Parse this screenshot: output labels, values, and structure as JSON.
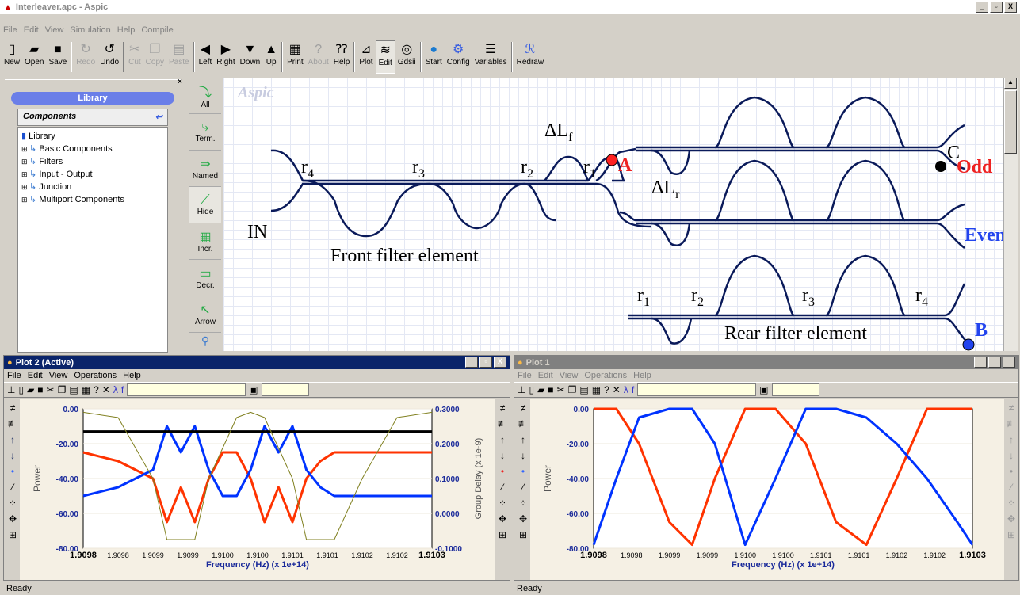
{
  "window": {
    "title": "Interleaver.apc - Aspic",
    "buttons": [
      "_",
      "▫",
      "X"
    ]
  },
  "menu": [
    "File",
    "Edit",
    "View",
    "Simulation",
    "Help",
    "Compile"
  ],
  "toolbar": [
    {
      "label": "New",
      "icon": "new-icon"
    },
    {
      "label": "Open",
      "icon": "open-icon"
    },
    {
      "label": "Save",
      "icon": "save-icon"
    },
    {
      "label": "Redo",
      "icon": "redo-icon"
    },
    {
      "label": "Undo",
      "icon": "undo-icon"
    },
    {
      "label": "Cut",
      "icon": "cut-icon"
    },
    {
      "label": "Copy",
      "icon": "copy-icon"
    },
    {
      "label": "Paste",
      "icon": "paste-icon"
    },
    {
      "label": "Left",
      "icon": "left-icon"
    },
    {
      "label": "Right",
      "icon": "right-icon"
    },
    {
      "label": "Down",
      "icon": "down-icon"
    },
    {
      "label": "Up",
      "icon": "up-icon"
    },
    {
      "label": "Print",
      "icon": "print-icon"
    },
    {
      "label": "About",
      "icon": "about-icon"
    },
    {
      "label": "Help",
      "icon": "help-icon"
    },
    {
      "label": "Plot",
      "icon": "plot-icon"
    },
    {
      "label": "Edit",
      "icon": "edit-icon"
    },
    {
      "label": "Gdsii",
      "icon": "gdsii-icon"
    },
    {
      "label": "Start",
      "icon": "start-icon"
    },
    {
      "label": "Config",
      "icon": "config-icon"
    },
    {
      "label": "Variables",
      "icon": "variables-icon"
    },
    {
      "label": "Redraw",
      "icon": "redraw-icon"
    }
  ],
  "library": {
    "header": "Library",
    "components_title": "Components",
    "root": "Library",
    "items": [
      "Basic Components",
      "Filters",
      "Input - Output",
      "Junction",
      "Multiport Components"
    ]
  },
  "palette": [
    "All",
    "Term.",
    "Named",
    "Hide",
    "Incr.",
    "Decr.",
    "Arrow"
  ],
  "canvas": {
    "watermark": "Aspic",
    "labels": {
      "r4": "r",
      "r3": "r",
      "r2": "r",
      "r1": "r",
      "dlf": "ΔL",
      "dlr": "ΔL",
      "A": "A",
      "B": "B",
      "C": "C",
      "odd": "Odd",
      "even": "Even",
      "in": "IN",
      "front": "Front filter element",
      "rear": "Rear filter element"
    }
  },
  "plot2": {
    "title": "Plot 2 (Active)",
    "menu": [
      "File",
      "Edit",
      "View",
      "Operations",
      "Help"
    ],
    "ylabel": "Power",
    "y2label": "Group Delay (x 1e-9)",
    "xlabel": "Frequency (Hz) (x 1e+14)",
    "yticks": [
      "0.00",
      "-20.00",
      "-40.00",
      "-60.00",
      "-80.00"
    ],
    "y2ticks": [
      "0.3000",
      "0.2000",
      "0.1000",
      "0.0000",
      "-0.1000"
    ],
    "xticks": [
      "1.9098",
      "1.9098",
      "1.9099",
      "1.9099",
      "1.9100",
      "1.9100",
      "1.9101",
      "1.9101",
      "1.9102",
      "1.9102",
      "1.9103"
    ]
  },
  "plot1": {
    "title": "Plot 1",
    "menu": [
      "File",
      "Edit",
      "View",
      "Operations",
      "Help"
    ],
    "ylabel": "Power",
    "xlabel": "Frequency (Hz) (x 1e+14)",
    "yticks": [
      "0.00",
      "-20.00",
      "-40.00",
      "-60.00",
      "-80.00"
    ],
    "xticks": [
      "1.9098",
      "1.9098",
      "1.9099",
      "1.9099",
      "1.9100",
      "1.9100",
      "1.9101",
      "1.9101",
      "1.9102",
      "1.9102",
      "1.9103"
    ]
  },
  "status": {
    "left": "Ready",
    "right": "Ready"
  },
  "chart_data": [
    {
      "type": "line",
      "xlabel": "Frequency (Hz) (x 1e+14)",
      "ylabel": "Power",
      "xlim": [
        1.9098,
        1.9103
      ],
      "ylim": [
        -80,
        0
      ],
      "y2lim": [
        -0.1,
        0.3
      ],
      "series": [
        {
          "color": "#ff3300",
          "x": [
            1.9098,
            1.90985,
            1.9099,
            1.90992,
            1.90994,
            1.90996,
            1.90998,
            1.91,
            1.91002,
            1.91004,
            1.91006,
            1.91008,
            1.9101,
            1.91012,
            1.91014,
            1.91016,
            1.9102,
            1.91025,
            1.9103
          ],
          "y": [
            -25,
            -30,
            -40,
            -65,
            -45,
            -65,
            -40,
            -25,
            -25,
            -40,
            -65,
            -45,
            -65,
            -40,
            -30,
            -25,
            -25,
            -25,
            -25
          ]
        },
        {
          "color": "#0033ff",
          "x": [
            1.9098,
            1.90985,
            1.9099,
            1.90992,
            1.90994,
            1.90996,
            1.90998,
            1.91,
            1.91002,
            1.91004,
            1.91006,
            1.91008,
            1.9101,
            1.91012,
            1.91014,
            1.91016,
            1.9102,
            1.91025,
            1.9103
          ],
          "y": [
            -50,
            -45,
            -35,
            -10,
            -25,
            -10,
            -35,
            -50,
            -50,
            -35,
            -10,
            -25,
            -10,
            -35,
            -45,
            -50,
            -50,
            -50,
            -50
          ]
        },
        {
          "color": "#000000",
          "x": [
            1.9098,
            1.9103
          ],
          "y": [
            -13,
            -13
          ]
        },
        {
          "color": "#808020",
          "x": [
            1.9098,
            1.90985,
            1.9099,
            1.90992,
            1.90996,
            1.90998,
            1.91002,
            1.91004,
            1.91006,
            1.9101,
            1.91012,
            1.91016,
            1.9102,
            1.91025,
            1.9103
          ],
          "y": [
            -2,
            -5,
            -40,
            -75,
            -75,
            -40,
            -5,
            -2,
            -5,
            -40,
            -75,
            -75,
            -40,
            -5,
            -2
          ]
        }
      ]
    },
    {
      "type": "line",
      "xlabel": "Frequency (Hz) (x 1e+14)",
      "ylabel": "Power",
      "xlim": [
        1.9098,
        1.9103
      ],
      "ylim": [
        -80,
        0
      ],
      "series": [
        {
          "color": "#ff3300",
          "x": [
            1.9098,
            1.90983,
            1.90986,
            1.9099,
            1.90993,
            1.90996,
            1.91,
            1.91004,
            1.91008,
            1.91012,
            1.91016,
            1.9102,
            1.91024,
            1.91028,
            1.9103
          ],
          "y": [
            0,
            0,
            -20,
            -65,
            -78,
            -40,
            0,
            0,
            -20,
            -65,
            -78,
            -40,
            0,
            0,
            0
          ]
        },
        {
          "color": "#0033ff",
          "x": [
            1.9098,
            1.90983,
            1.90986,
            1.9099,
            1.90993,
            1.90996,
            1.91,
            1.91004,
            1.91008,
            1.91012,
            1.91016,
            1.9102,
            1.91024,
            1.91028,
            1.9103
          ],
          "y": [
            -78,
            -40,
            -5,
            0,
            0,
            -20,
            -78,
            -40,
            0,
            0,
            -5,
            -20,
            -40,
            -65,
            -78
          ]
        }
      ]
    }
  ]
}
